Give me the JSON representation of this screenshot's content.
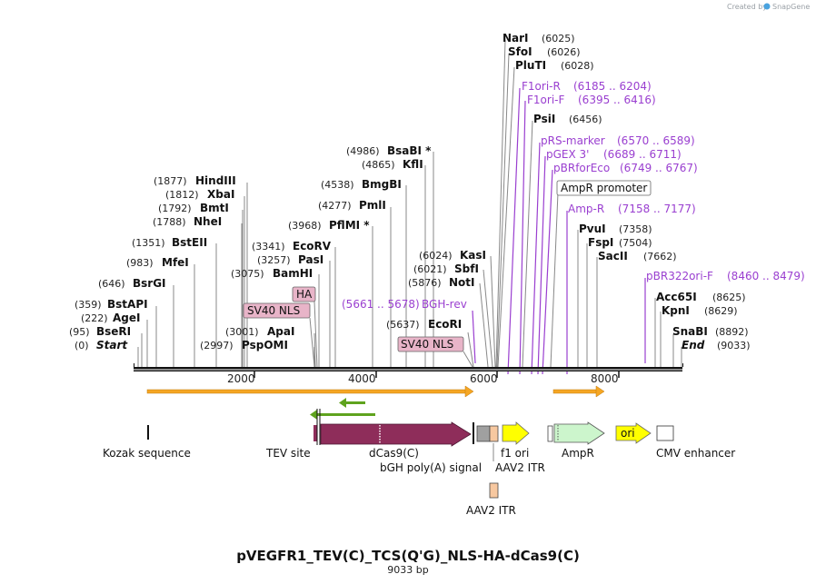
{
  "watermark": {
    "created_by": "Created by",
    "brand": "SnapGene"
  },
  "title": "pVEGFR1_TEV(C)_TCS(Q'G)_NLS-HA-dCas9(C)",
  "subtitle": "9033 bp",
  "ruler": {
    "ticks": [
      "2000",
      "4000",
      "6000",
      "8000"
    ]
  },
  "sites": [
    {
      "pos": "(0)",
      "name": "Start"
    },
    {
      "pos": "(95)",
      "name": "BseRI"
    },
    {
      "pos": "(222)",
      "name": "AgeI"
    },
    {
      "pos": "(359)",
      "name": "BstAPI"
    },
    {
      "pos": "(646)",
      "name": "BsrGI"
    },
    {
      "pos": "(983)",
      "name": "MfeI"
    },
    {
      "pos": "(1351)",
      "name": "BstEII"
    },
    {
      "pos": "(1788)",
      "name": "NheI"
    },
    {
      "pos": "(1792)",
      "name": "BmtI"
    },
    {
      "pos": "(1812)",
      "name": "XbaI"
    },
    {
      "pos": "(1877)",
      "name": "HindIII"
    },
    {
      "pos": "(2997)",
      "name": "PspOMI"
    },
    {
      "pos": "(3001)",
      "name": "ApaI"
    },
    {
      "pos": "(3075)",
      "name": "BamHI"
    },
    {
      "pos": "(3257)",
      "name": "PasI"
    },
    {
      "pos": "(3341)",
      "name": "EcoRV"
    },
    {
      "pos": "(3968)",
      "name": "PflMI *"
    },
    {
      "pos": "(4277)",
      "name": "PmlI"
    },
    {
      "pos": "(4538)",
      "name": "BmgBI"
    },
    {
      "pos": "(4865)",
      "name": "KflI"
    },
    {
      "pos": "(4986)",
      "name": "BsaBI *"
    },
    {
      "pos": "(5637)",
      "name": "EcoRI"
    },
    {
      "pos": "(5876)",
      "name": "NotI"
    },
    {
      "pos": "(6021)",
      "name": "SbfI"
    },
    {
      "pos": "(6024)",
      "name": "KasI"
    },
    {
      "pos": "(6025)",
      "name": "NarI"
    },
    {
      "pos": "(6026)",
      "name": "SfoI"
    },
    {
      "pos": "(6028)",
      "name": "PluTI"
    },
    {
      "pos": "(6456)",
      "name": "PsiI"
    },
    {
      "pos": "(7358)",
      "name": "PvuI"
    },
    {
      "pos": "(7504)",
      "name": "FspI"
    },
    {
      "pos": "(7662)",
      "name": "SacII"
    },
    {
      "pos": "(8625)",
      "name": "Acc65I"
    },
    {
      "pos": "(8629)",
      "name": "KpnI"
    },
    {
      "pos": "(8892)",
      "name": "SnaBI"
    },
    {
      "pos": "(9033)",
      "name": "End"
    }
  ],
  "primers": [
    {
      "name": "BGH-rev",
      "range": "(5661 .. 5678)"
    },
    {
      "name": "F1ori-R",
      "range": "(6185 .. 6204)"
    },
    {
      "name": "F1ori-F",
      "range": "(6395 .. 6416)"
    },
    {
      "name": "pRS-marker",
      "range": "(6570 .. 6589)"
    },
    {
      "name": "pGEX 3'",
      "range": "(6689 .. 6711)"
    },
    {
      "name": "pBRforEco",
      "range": "(6749 .. 6767)"
    },
    {
      "name": "Amp-R",
      "range": "(7158 .. 7177)"
    },
    {
      "name": "pBR322ori-F",
      "range": "(8460 .. 8479)"
    }
  ],
  "boxed_features": {
    "ha": "HA",
    "sv40_nls_1": "SV40 NLS",
    "sv40_nls_2": "SV40 NLS",
    "ampr_promoter": "AmpR promoter"
  },
  "features": {
    "kozak": "Kozak sequence",
    "tev": "TEV site",
    "dcas9": "dCas9(C)",
    "bgh": "bGH poly(A) signal",
    "f1ori": "f1 ori",
    "aav2_itr_top": "AAV2 ITR",
    "ampr": "AmpR",
    "ori": "ori",
    "cmv": "CMV enhancer",
    "aav2_itr_bottom": "AAV2 ITR"
  },
  "colors": {
    "primer": "#9a3fd0",
    "dcas9": "#8e2d5a",
    "yellow": "#ffff00",
    "itr": "#f7c8a0",
    "ampr": "#ccf5cc",
    "orange_arrow": "#f5a623",
    "green_arrow": "#5fa31e",
    "box_pink": "#e8b4c8"
  }
}
